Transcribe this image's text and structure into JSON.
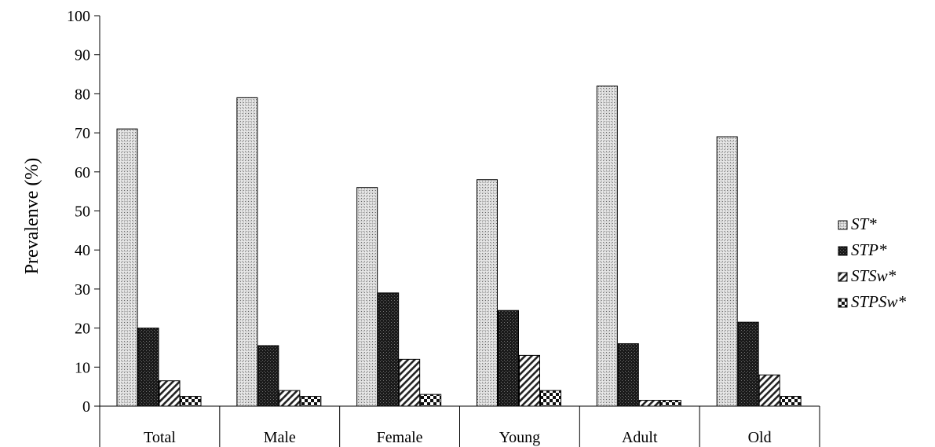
{
  "chart_data": {
    "type": "bar",
    "ylabel": "Prevalenve (%)",
    "ylim": [
      0,
      100
    ],
    "yticks": [
      "0",
      "10",
      "20",
      "30",
      "40",
      "50",
      "60",
      "70",
      "80",
      "90",
      "100"
    ],
    "ytick_values": [
      0,
      10,
      20,
      30,
      40,
      50,
      60,
      70,
      80,
      90,
      100
    ],
    "grid": false,
    "legend_position": "right",
    "categories": [
      "Total",
      "Male",
      "Female",
      "Young",
      "Adult",
      "Old"
    ],
    "series": [
      {
        "name": "ST*",
        "values": [
          71,
          79,
          56,
          58,
          82,
          69
        ],
        "pattern": "light-dots"
      },
      {
        "name": "STP*",
        "values": [
          20,
          15.5,
          29,
          24.5,
          16,
          21.5
        ],
        "pattern": "dark-dots"
      },
      {
        "name": "STSw*",
        "values": [
          6.5,
          4,
          12,
          13,
          1.5,
          8
        ],
        "pattern": "diagonal"
      },
      {
        "name": "STPSw*",
        "values": [
          2.5,
          2.5,
          3,
          4,
          1.5,
          2.5
        ],
        "pattern": "checker"
      }
    ]
  }
}
